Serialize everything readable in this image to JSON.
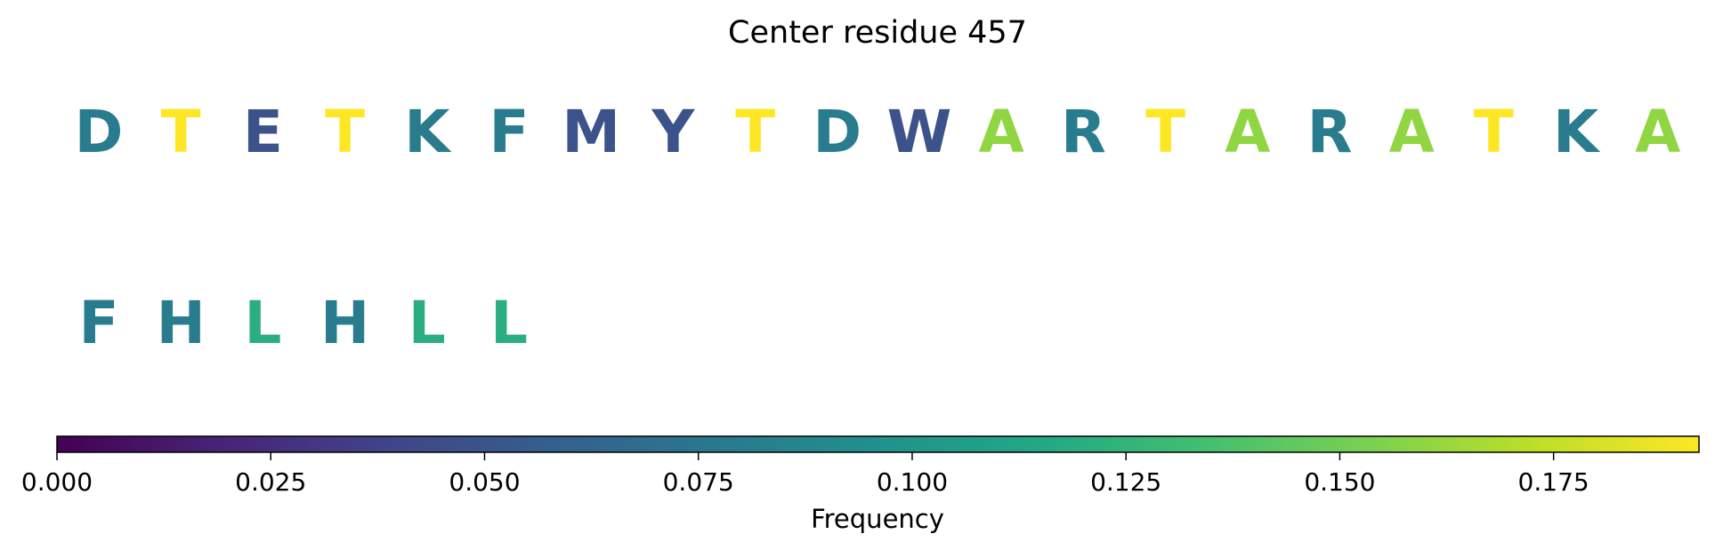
{
  "chart_data": {
    "type": "sequence-logo",
    "title": "Center residue 457",
    "rows": [
      [
        {
          "letter": "D",
          "value": 0.08
        },
        {
          "letter": "T",
          "value": 0.192
        },
        {
          "letter": "E",
          "value": 0.048
        },
        {
          "letter": "T",
          "value": 0.192
        },
        {
          "letter": "K",
          "value": 0.08
        },
        {
          "letter": "F",
          "value": 0.08
        },
        {
          "letter": "M",
          "value": 0.048
        },
        {
          "letter": "Y",
          "value": 0.048
        },
        {
          "letter": "T",
          "value": 0.192
        },
        {
          "letter": "D",
          "value": 0.08
        },
        {
          "letter": "W",
          "value": 0.048
        },
        {
          "letter": "A",
          "value": 0.16
        },
        {
          "letter": "R",
          "value": 0.08
        },
        {
          "letter": "T",
          "value": 0.192
        },
        {
          "letter": "A",
          "value": 0.16
        },
        {
          "letter": "R",
          "value": 0.08
        },
        {
          "letter": "A",
          "value": 0.16
        },
        {
          "letter": "T",
          "value": 0.192
        },
        {
          "letter": "K",
          "value": 0.08
        },
        {
          "letter": "A",
          "value": 0.16
        }
      ],
      [
        {
          "letter": "F",
          "value": 0.08
        },
        {
          "letter": "H",
          "value": 0.08
        },
        {
          "letter": "L",
          "value": 0.12
        },
        {
          "letter": "H",
          "value": 0.08
        },
        {
          "letter": "L",
          "value": 0.12
        },
        {
          "letter": "L",
          "value": 0.12
        }
      ]
    ],
    "colorbar": {
      "colormap": "viridis",
      "range": [
        0.0,
        0.192
      ],
      "ticks": [
        0.0,
        0.025,
        0.05,
        0.075,
        0.1,
        0.125,
        0.15,
        0.175
      ],
      "tick_labels": [
        "0.000",
        "0.025",
        "0.050",
        "0.075",
        "0.100",
        "0.125",
        "0.150",
        "0.175"
      ],
      "label": "Frequency"
    }
  }
}
